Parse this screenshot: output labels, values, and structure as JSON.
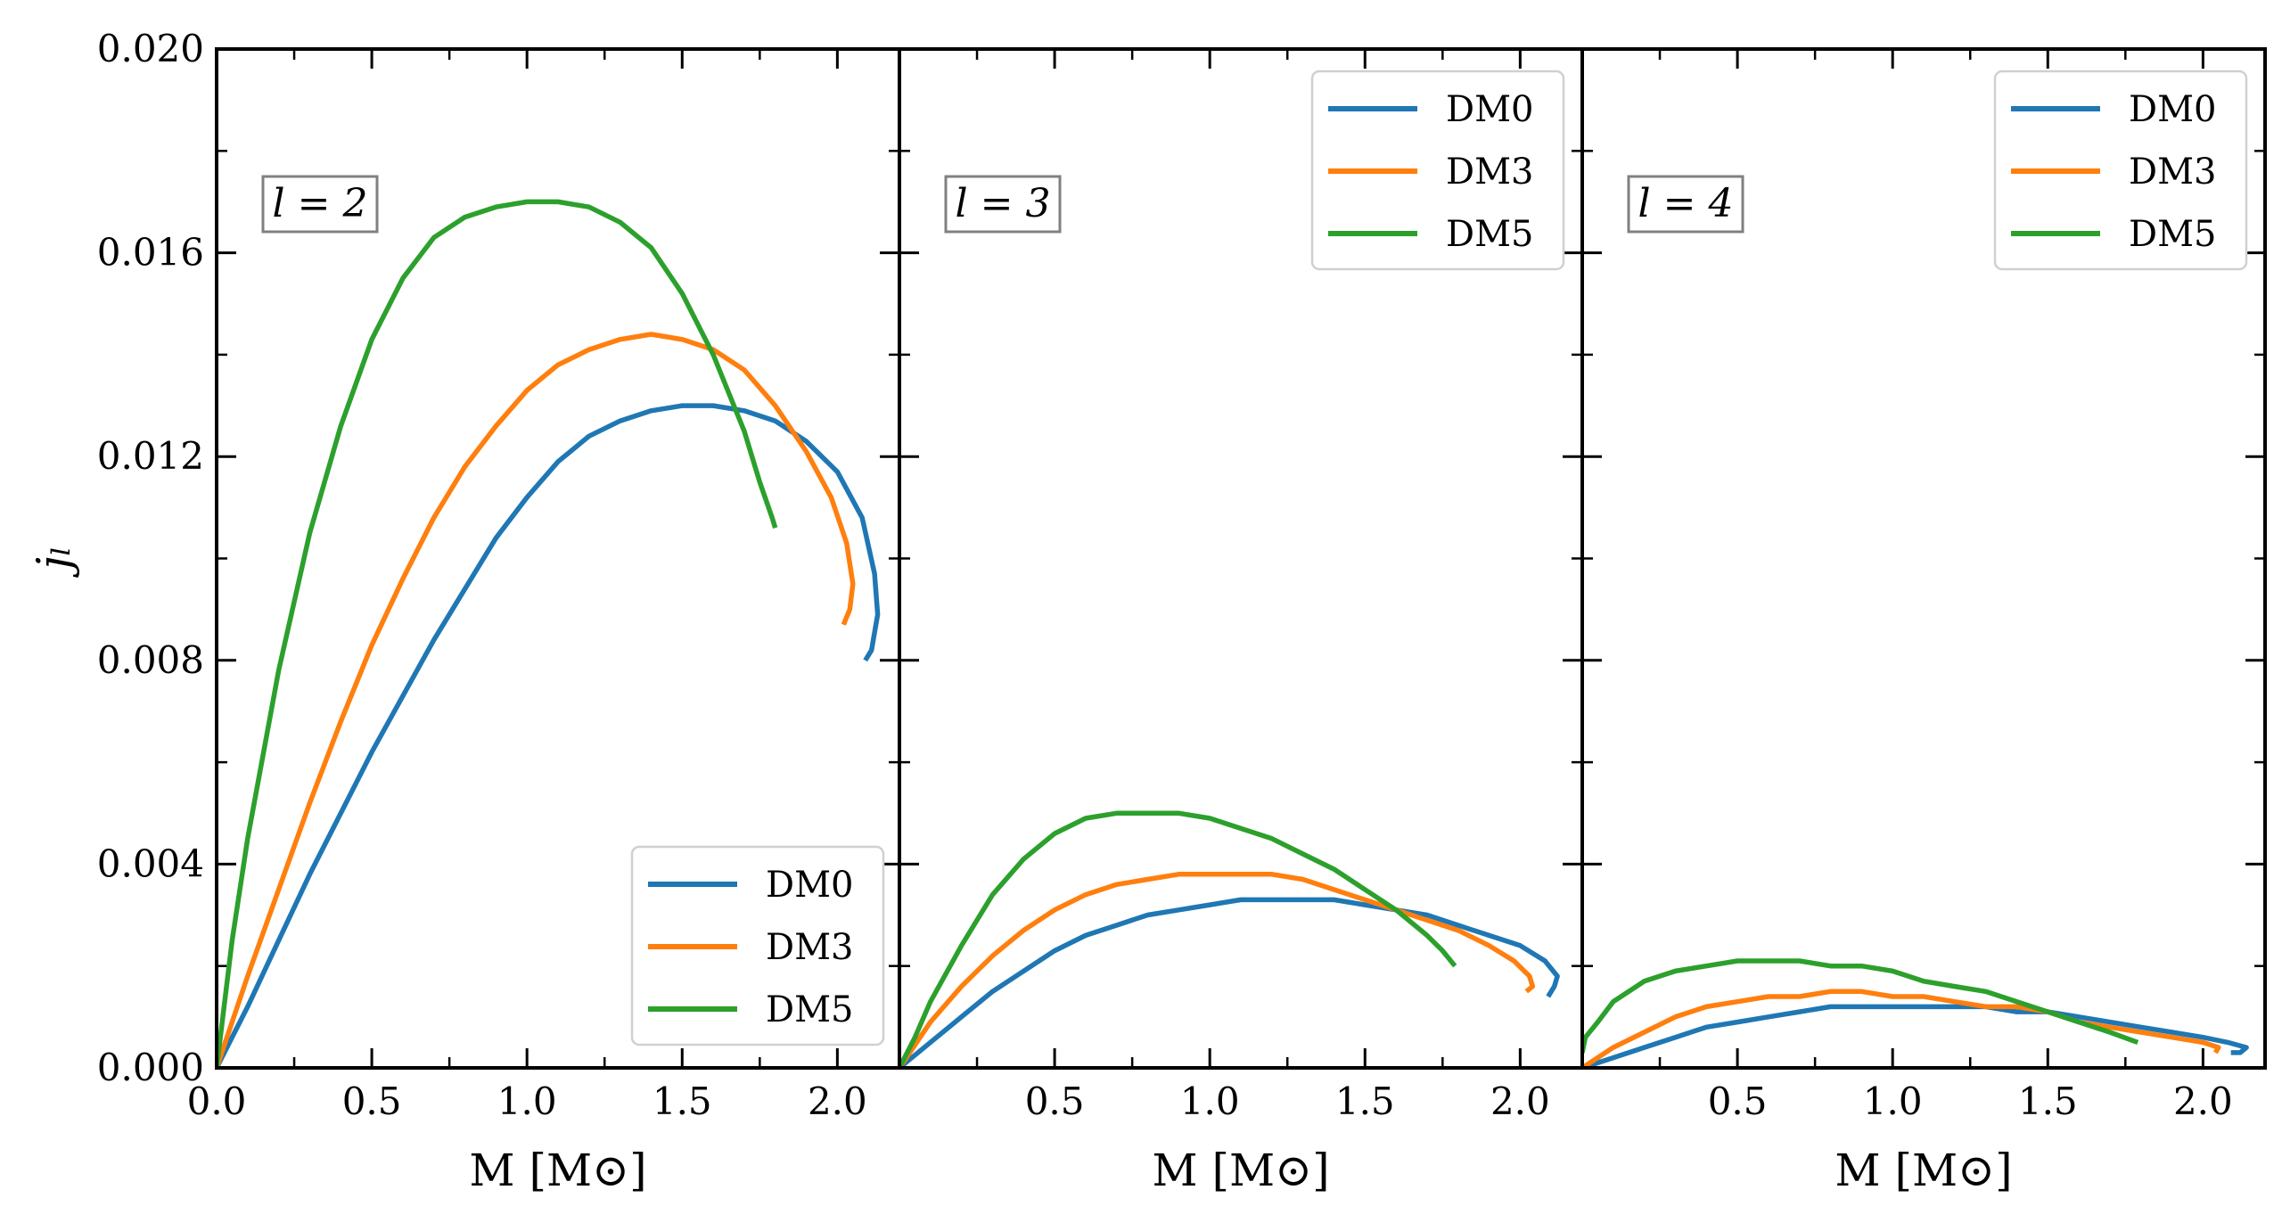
{
  "chart_data": [
    {
      "type": "line",
      "panel_label": "l = 2",
      "xlabel": "M  [M⊙]",
      "ylabel": "j̇ₗ",
      "xlim": [
        0.0,
        2.2
      ],
      "ylim": [
        0.0,
        0.02
      ],
      "xticks": [
        "0.0",
        "0.5",
        "1.0",
        "1.5",
        "2.0"
      ],
      "yticks": [
        "0.000",
        "0.004",
        "0.008",
        "0.012",
        "0.016",
        "0.020"
      ],
      "legend_position": "lower-right",
      "series": [
        {
          "name": "DM0",
          "color": "#1f77b4",
          "points": [
            [
              0.0,
              0.0
            ],
            [
              0.1,
              0.0012
            ],
            [
              0.2,
              0.0025
            ],
            [
              0.3,
              0.0038
            ],
            [
              0.4,
              0.005
            ],
            [
              0.5,
              0.0062
            ],
            [
              0.6,
              0.0073
            ],
            [
              0.7,
              0.0084
            ],
            [
              0.8,
              0.0094
            ],
            [
              0.9,
              0.0104
            ],
            [
              1.0,
              0.0112
            ],
            [
              1.1,
              0.0119
            ],
            [
              1.2,
              0.0124
            ],
            [
              1.3,
              0.0127
            ],
            [
              1.4,
              0.0129
            ],
            [
              1.5,
              0.013
            ],
            [
              1.6,
              0.013
            ],
            [
              1.7,
              0.0129
            ],
            [
              1.8,
              0.0127
            ],
            [
              1.9,
              0.0123
            ],
            [
              2.0,
              0.0117
            ],
            [
              2.08,
              0.0108
            ],
            [
              2.12,
              0.0097
            ],
            [
              2.13,
              0.0089
            ],
            [
              2.11,
              0.0082
            ],
            [
              2.09,
              0.008
            ]
          ]
        },
        {
          "name": "DM3",
          "color": "#ff7f0e",
          "points": [
            [
              0.0,
              0.0
            ],
            [
              0.1,
              0.0018
            ],
            [
              0.2,
              0.0035
            ],
            [
              0.3,
              0.0052
            ],
            [
              0.4,
              0.0068
            ],
            [
              0.5,
              0.0083
            ],
            [
              0.6,
              0.0096
            ],
            [
              0.7,
              0.0108
            ],
            [
              0.8,
              0.0118
            ],
            [
              0.9,
              0.0126
            ],
            [
              1.0,
              0.0133
            ],
            [
              1.1,
              0.0138
            ],
            [
              1.2,
              0.0141
            ],
            [
              1.3,
              0.0143
            ],
            [
              1.4,
              0.0144
            ],
            [
              1.5,
              0.0143
            ],
            [
              1.6,
              0.0141
            ],
            [
              1.7,
              0.0137
            ],
            [
              1.8,
              0.013
            ],
            [
              1.9,
              0.0121
            ],
            [
              1.98,
              0.0112
            ],
            [
              2.03,
              0.0103
            ],
            [
              2.05,
              0.0095
            ],
            [
              2.04,
              0.009
            ],
            [
              2.02,
              0.0087
            ]
          ]
        },
        {
          "name": "DM5",
          "color": "#2ca02c",
          "points": [
            [
              0.0,
              0.0
            ],
            [
              0.05,
              0.0025
            ],
            [
              0.1,
              0.0045
            ],
            [
              0.2,
              0.0078
            ],
            [
              0.3,
              0.0105
            ],
            [
              0.4,
              0.0126
            ],
            [
              0.5,
              0.0143
            ],
            [
              0.6,
              0.0155
            ],
            [
              0.7,
              0.0163
            ],
            [
              0.8,
              0.0167
            ],
            [
              0.9,
              0.0169
            ],
            [
              1.0,
              0.017
            ],
            [
              1.1,
              0.017
            ],
            [
              1.2,
              0.0169
            ],
            [
              1.3,
              0.0166
            ],
            [
              1.4,
              0.0161
            ],
            [
              1.5,
              0.0152
            ],
            [
              1.6,
              0.014
            ],
            [
              1.7,
              0.0125
            ],
            [
              1.75,
              0.0115
            ],
            [
              1.79,
              0.0108
            ],
            [
              1.8,
              0.0106
            ]
          ]
        }
      ]
    },
    {
      "type": "line",
      "panel_label": "l = 3",
      "xlabel": "M  [M⊙]",
      "xlim": [
        0.0,
        2.2
      ],
      "ylim": [
        0.0,
        0.02
      ],
      "xticks": [
        "0.5",
        "1.0",
        "1.5",
        "2.0"
      ],
      "legend_position": "top-right",
      "series": [
        {
          "name": "DM0",
          "color": "#1f77b4",
          "points": [
            [
              0.0,
              0.0
            ],
            [
              0.1,
              0.0005
            ],
            [
              0.2,
              0.001
            ],
            [
              0.3,
              0.0015
            ],
            [
              0.4,
              0.0019
            ],
            [
              0.5,
              0.0023
            ],
            [
              0.6,
              0.0026
            ],
            [
              0.7,
              0.0028
            ],
            [
              0.8,
              0.003
            ],
            [
              0.9,
              0.0031
            ],
            [
              1.0,
              0.0032
            ],
            [
              1.1,
              0.0033
            ],
            [
              1.2,
              0.0033
            ],
            [
              1.3,
              0.0033
            ],
            [
              1.4,
              0.0033
            ],
            [
              1.5,
              0.0032
            ],
            [
              1.6,
              0.0031
            ],
            [
              1.7,
              0.003
            ],
            [
              1.8,
              0.0028
            ],
            [
              1.9,
              0.0026
            ],
            [
              2.0,
              0.0024
            ],
            [
              2.08,
              0.0021
            ],
            [
              2.12,
              0.0018
            ],
            [
              2.11,
              0.0016
            ],
            [
              2.09,
              0.0014
            ]
          ]
        },
        {
          "name": "DM3",
          "color": "#ff7f0e",
          "points": [
            [
              0.0,
              0.0
            ],
            [
              0.1,
              0.0009
            ],
            [
              0.2,
              0.0016
            ],
            [
              0.3,
              0.0022
            ],
            [
              0.4,
              0.0027
            ],
            [
              0.5,
              0.0031
            ],
            [
              0.6,
              0.0034
            ],
            [
              0.7,
              0.0036
            ],
            [
              0.8,
              0.0037
            ],
            [
              0.9,
              0.0038
            ],
            [
              1.0,
              0.0038
            ],
            [
              1.1,
              0.0038
            ],
            [
              1.2,
              0.0038
            ],
            [
              1.3,
              0.0037
            ],
            [
              1.4,
              0.0035
            ],
            [
              1.5,
              0.0033
            ],
            [
              1.6,
              0.0031
            ],
            [
              1.7,
              0.0029
            ],
            [
              1.8,
              0.0027
            ],
            [
              1.9,
              0.0024
            ],
            [
              1.98,
              0.0021
            ],
            [
              2.03,
              0.0018
            ],
            [
              2.04,
              0.0016
            ],
            [
              2.02,
              0.0015
            ]
          ]
        },
        {
          "name": "DM5",
          "color": "#2ca02c",
          "points": [
            [
              0.0,
              0.0
            ],
            [
              0.05,
              0.0006
            ],
            [
              0.1,
              0.0013
            ],
            [
              0.2,
              0.0024
            ],
            [
              0.3,
              0.0034
            ],
            [
              0.4,
              0.0041
            ],
            [
              0.5,
              0.0046
            ],
            [
              0.6,
              0.0049
            ],
            [
              0.7,
              0.005
            ],
            [
              0.8,
              0.005
            ],
            [
              0.9,
              0.005
            ],
            [
              1.0,
              0.0049
            ],
            [
              1.1,
              0.0047
            ],
            [
              1.2,
              0.0045
            ],
            [
              1.3,
              0.0042
            ],
            [
              1.4,
              0.0039
            ],
            [
              1.5,
              0.0035
            ],
            [
              1.6,
              0.0031
            ],
            [
              1.7,
              0.0026
            ],
            [
              1.75,
              0.0023
            ],
            [
              1.79,
              0.002
            ]
          ]
        }
      ]
    },
    {
      "type": "line",
      "panel_label": "l = 4",
      "xlabel": "M  [M⊙]",
      "xlim": [
        0.0,
        2.2
      ],
      "ylim": [
        0.0,
        0.02
      ],
      "xticks": [
        "0.5",
        "1.0",
        "1.5",
        "2.0"
      ],
      "legend_position": "top-right",
      "series": [
        {
          "name": "DM0",
          "color": "#1f77b4",
          "points": [
            [
              0.0,
              0.0
            ],
            [
              0.1,
              0.0002
            ],
            [
              0.2,
              0.0004
            ],
            [
              0.3,
              0.0006
            ],
            [
              0.4,
              0.0008
            ],
            [
              0.5,
              0.0009
            ],
            [
              0.6,
              0.001
            ],
            [
              0.7,
              0.0011
            ],
            [
              0.8,
              0.0012
            ],
            [
              0.9,
              0.0012
            ],
            [
              1.0,
              0.0012
            ],
            [
              1.1,
              0.0012
            ],
            [
              1.2,
              0.0012
            ],
            [
              1.3,
              0.0012
            ],
            [
              1.4,
              0.0011
            ],
            [
              1.5,
              0.0011
            ],
            [
              1.6,
              0.001
            ],
            [
              1.7,
              0.0009
            ],
            [
              1.8,
              0.0008
            ],
            [
              1.9,
              0.0007
            ],
            [
              2.0,
              0.0006
            ],
            [
              2.08,
              0.0005
            ],
            [
              2.14,
              0.0004
            ],
            [
              2.12,
              0.0003
            ],
            [
              2.09,
              0.0003
            ]
          ]
        },
        {
          "name": "DM3",
          "color": "#ff7f0e",
          "points": [
            [
              0.0,
              0.0
            ],
            [
              0.1,
              0.0004
            ],
            [
              0.2,
              0.0007
            ],
            [
              0.3,
              0.001
            ],
            [
              0.4,
              0.0012
            ],
            [
              0.5,
              0.0013
            ],
            [
              0.6,
              0.0014
            ],
            [
              0.7,
              0.0014
            ],
            [
              0.8,
              0.0015
            ],
            [
              0.9,
              0.0015
            ],
            [
              1.0,
              0.0014
            ],
            [
              1.1,
              0.0014
            ],
            [
              1.2,
              0.0013
            ],
            [
              1.3,
              0.0012
            ],
            [
              1.4,
              0.0012
            ],
            [
              1.5,
              0.0011
            ],
            [
              1.6,
              0.0009
            ],
            [
              1.7,
              0.0008
            ],
            [
              1.8,
              0.0007
            ],
            [
              1.9,
              0.0006
            ],
            [
              2.0,
              0.0005
            ],
            [
              2.05,
              0.0004
            ],
            [
              2.04,
              0.0003
            ]
          ]
        },
        {
          "name": "DM5",
          "color": "#2ca02c",
          "points": [
            [
              0.0,
              0.0003
            ],
            [
              0.01,
              0.0006
            ],
            [
              0.05,
              0.0009
            ],
            [
              0.1,
              0.0013
            ],
            [
              0.2,
              0.0017
            ],
            [
              0.3,
              0.0019
            ],
            [
              0.4,
              0.002
            ],
            [
              0.5,
              0.0021
            ],
            [
              0.6,
              0.0021
            ],
            [
              0.7,
              0.0021
            ],
            [
              0.8,
              0.002
            ],
            [
              0.9,
              0.002
            ],
            [
              1.0,
              0.0019
            ],
            [
              1.1,
              0.0017
            ],
            [
              1.2,
              0.0016
            ],
            [
              1.3,
              0.0015
            ],
            [
              1.4,
              0.0013
            ],
            [
              1.5,
              0.0011
            ],
            [
              1.6,
              0.0009
            ],
            [
              1.7,
              0.0007
            ],
            [
              1.79,
              0.0005
            ]
          ]
        }
      ]
    }
  ]
}
